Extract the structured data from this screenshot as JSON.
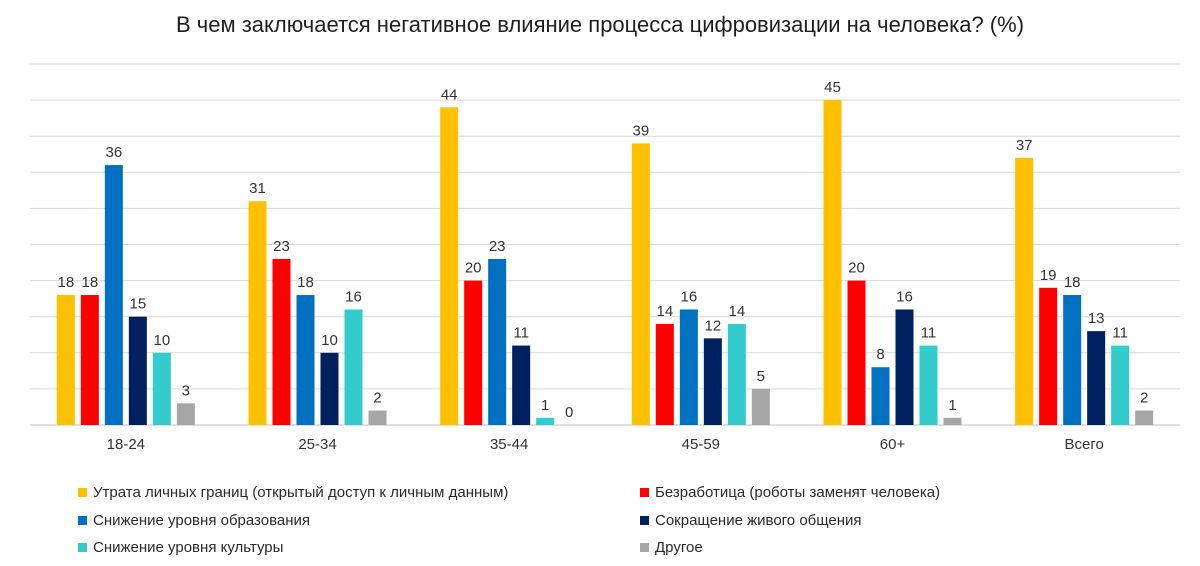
{
  "chart_data": {
    "type": "bar",
    "title": "В чем заключается негативное влияние процесса цифровизации на человека? (%)",
    "categories": [
      "18-24",
      "25-34",
      "35-44",
      "45-59",
      "60+",
      "Всего"
    ],
    "ylim": [
      0,
      50
    ],
    "grid": true,
    "legend_position": "bottom",
    "series": [
      {
        "name": "Утрата личных  границ (открытый доступ к личным данным)",
        "color": "#FFC000",
        "values": [
          18,
          31,
          44,
          39,
          45,
          37
        ]
      },
      {
        "name": "Безработица (роботы заменят человека)",
        "color": "#FF0000",
        "values": [
          18,
          23,
          20,
          14,
          20,
          19
        ]
      },
      {
        "name": "Снижение  уровня образования",
        "color": "#0070C0",
        "values": [
          36,
          18,
          23,
          16,
          8,
          18
        ]
      },
      {
        "name": "Сокращение живого общения",
        "color": "#002060",
        "values": [
          15,
          10,
          11,
          12,
          16,
          13
        ]
      },
      {
        "name": "Снижение  уровня культуры",
        "color": "#33CCCC",
        "values": [
          10,
          16,
          1,
          14,
          11,
          11
        ]
      },
      {
        "name": "Другое",
        "color": "#A6A6A6",
        "values": [
          3,
          2,
          0,
          5,
          1,
          2
        ]
      }
    ]
  }
}
